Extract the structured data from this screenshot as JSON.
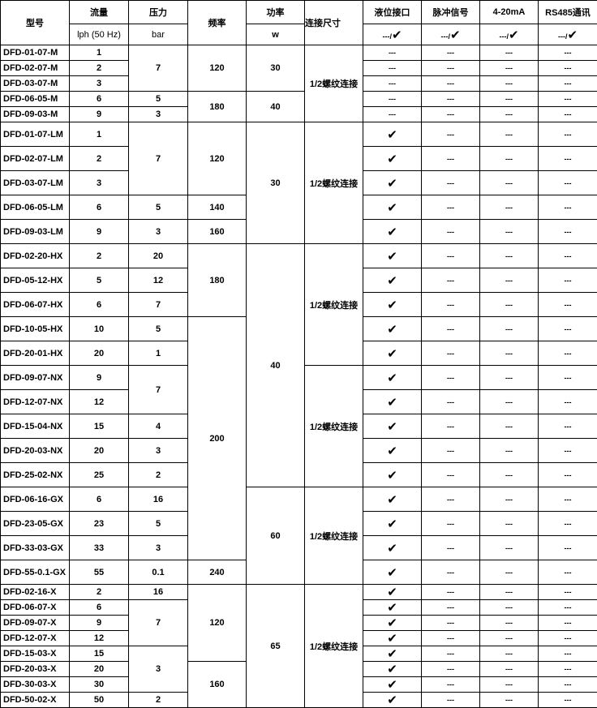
{
  "header": {
    "model": "型号",
    "flow": "流量",
    "flow_unit": "lph (50 Hz)",
    "pressure": "压力",
    "pressure_unit": "bar",
    "freq": "频率",
    "power": "功率",
    "power_unit": "w",
    "conn": "连接尺寸",
    "opts": [
      "液位接口",
      "脉冲信号",
      "4-20mA",
      "RS485通讯"
    ],
    "opt_legend_dash": "---/",
    "opt_legend_check": "✔"
  },
  "symbols": {
    "no": "---",
    "yes": "✔"
  },
  "rows": [
    {
      "h": "s",
      "model": "DFD-01-07-M",
      "flow": "1",
      "pressure": [
        "7",
        3
      ],
      "freq": [
        "120",
        3
      ],
      "power": [
        "30",
        3
      ],
      "conn": [
        "1/2螺纹连接",
        5
      ],
      "opts": [
        0,
        0,
        0,
        0
      ]
    },
    {
      "h": "s",
      "model": "DFD-02-07-M",
      "flow": "2",
      "opts": [
        0,
        0,
        0,
        0
      ]
    },
    {
      "h": "s",
      "model": "DFD-03-07-M",
      "flow": "3",
      "opts": [
        0,
        0,
        0,
        0
      ]
    },
    {
      "h": "s",
      "model": "DFD-06-05-M",
      "flow": "6",
      "pressure": [
        "5",
        1
      ],
      "freq": [
        "180",
        2
      ],
      "power": [
        "40",
        2
      ],
      "opts": [
        0,
        0,
        0,
        0
      ]
    },
    {
      "h": "s",
      "model": "DFD-09-03-M",
      "flow": "9",
      "pressure": [
        "3",
        1
      ],
      "opts": [
        0,
        0,
        0,
        0
      ]
    },
    {
      "h": "t",
      "model": "DFD-01-07-LM",
      "flow": "1",
      "pressure": [
        "7",
        3
      ],
      "freq": [
        "120",
        3
      ],
      "power": [
        "30",
        5
      ],
      "conn": [
        "1/2螺纹连接",
        5
      ],
      "opts": [
        1,
        0,
        0,
        0
      ]
    },
    {
      "h": "t",
      "model": "DFD-02-07-LM",
      "flow": "2",
      "opts": [
        1,
        0,
        0,
        0
      ]
    },
    {
      "h": "t",
      "model": "DFD-03-07-LM",
      "flow": "3",
      "opts": [
        1,
        0,
        0,
        0
      ]
    },
    {
      "h": "t",
      "model": "DFD-06-05-LM",
      "flow": "6",
      "pressure": [
        "5",
        1
      ],
      "freq": [
        "140",
        1
      ],
      "opts": [
        1,
        0,
        0,
        0
      ]
    },
    {
      "h": "t",
      "model": "DFD-09-03-LM",
      "flow": "9",
      "pressure": [
        "3",
        1
      ],
      "freq": [
        "160",
        1
      ],
      "opts": [
        1,
        0,
        0,
        0
      ]
    },
    {
      "h": "t",
      "model": "DFD-02-20-HX",
      "flow": "2",
      "pressure": [
        "20",
        1
      ],
      "freq": [
        "180",
        3
      ],
      "power": [
        "40",
        10
      ],
      "conn": [
        "1/2螺纹连接",
        5
      ],
      "opts": [
        1,
        0,
        0,
        0
      ]
    },
    {
      "h": "t",
      "model": "DFD-05-12-HX",
      "flow": "5",
      "pressure": [
        "12",
        1
      ],
      "opts": [
        1,
        0,
        0,
        0
      ]
    },
    {
      "h": "t",
      "model": "DFD-06-07-HX",
      "flow": "6",
      "pressure": [
        "7",
        1
      ],
      "opts": [
        1,
        0,
        0,
        0
      ]
    },
    {
      "h": "t",
      "model": "DFD-10-05-HX",
      "flow": "10",
      "pressure": [
        "5",
        1
      ],
      "freq": [
        "200",
        10
      ],
      "opts": [
        1,
        0,
        0,
        0
      ]
    },
    {
      "h": "t",
      "model": "DFD-20-01-HX",
      "flow": "20",
      "pressure": [
        "1",
        1
      ],
      "opts": [
        1,
        0,
        0,
        0
      ]
    },
    {
      "h": "t",
      "model": "DFD-09-07-NX",
      "flow": "9",
      "pressure": [
        "7",
        2
      ],
      "conn": [
        "1/2螺纹连接",
        5
      ],
      "opts": [
        1,
        0,
        0,
        0
      ]
    },
    {
      "h": "t",
      "model": "DFD-12-07-NX",
      "flow": "12",
      "opts": [
        1,
        0,
        0,
        0
      ]
    },
    {
      "h": "t",
      "model": "DFD-15-04-NX",
      "flow": "15",
      "pressure": [
        "4",
        1
      ],
      "opts": [
        1,
        0,
        0,
        0
      ]
    },
    {
      "h": "t",
      "model": "DFD-20-03-NX",
      "flow": "20",
      "pressure": [
        "3",
        1
      ],
      "opts": [
        1,
        0,
        0,
        0
      ]
    },
    {
      "h": "t",
      "model": "DFD-25-02-NX",
      "flow": "25",
      "pressure": [
        "2",
        1
      ],
      "opts": [
        1,
        0,
        0,
        0
      ]
    },
    {
      "h": "t",
      "model": "DFD-06-16-GX",
      "flow": "6",
      "pressure": [
        "16",
        1
      ],
      "power": [
        "60",
        4
      ],
      "conn": [
        "1/2螺纹连接",
        4
      ],
      "opts": [
        1,
        0,
        0,
        0
      ]
    },
    {
      "h": "t",
      "model": "DFD-23-05-GX",
      "flow": "23",
      "pressure": [
        "5",
        1
      ],
      "opts": [
        1,
        0,
        0,
        0
      ]
    },
    {
      "h": "t",
      "model": "DFD-33-03-GX",
      "flow": "33",
      "pressure": [
        "3",
        1
      ],
      "opts": [
        1,
        0,
        0,
        0
      ]
    },
    {
      "h": "t",
      "model": "DFD-55-0.1-GX",
      "flow": "55",
      "pressure": [
        "0.1",
        1
      ],
      "freq": [
        "240",
        1
      ],
      "opts": [
        1,
        0,
        0,
        0
      ]
    },
    {
      "h": "s",
      "model": "DFD-02-16-X",
      "flow": "2",
      "pressure": [
        "16",
        1
      ],
      "freq": [
        "120",
        5
      ],
      "power": [
        "65",
        8
      ],
      "conn": [
        "1/2螺纹连接",
        8
      ],
      "opts": [
        1,
        0,
        0,
        0
      ]
    },
    {
      "h": "s",
      "model": "DFD-06-07-X",
      "flow": "6",
      "pressure": [
        "7",
        3
      ],
      "opts": [
        1,
        0,
        0,
        0
      ]
    },
    {
      "h": "s",
      "model": "DFD-09-07-X",
      "flow": "9",
      "opts": [
        1,
        0,
        0,
        0
      ]
    },
    {
      "h": "s",
      "model": "DFD-12-07-X",
      "flow": "12",
      "opts": [
        1,
        0,
        0,
        0
      ]
    },
    {
      "h": "s",
      "model": "DFD-15-03-X",
      "flow": "15",
      "pressure": [
        "3",
        3
      ],
      "opts": [
        1,
        0,
        0,
        0
      ]
    },
    {
      "h": "s",
      "model": "DFD-20-03-X",
      "flow": "20",
      "freq": [
        "160",
        3
      ],
      "opts": [
        1,
        0,
        0,
        0
      ]
    },
    {
      "h": "s",
      "model": "DFD-30-03-X",
      "flow": "30",
      "opts": [
        1,
        0,
        0,
        0
      ]
    },
    {
      "h": "s",
      "model": "DFD-50-02-X",
      "flow": "50",
      "pressure": [
        "2",
        1
      ],
      "opts": [
        1,
        0,
        0,
        0
      ]
    }
  ]
}
